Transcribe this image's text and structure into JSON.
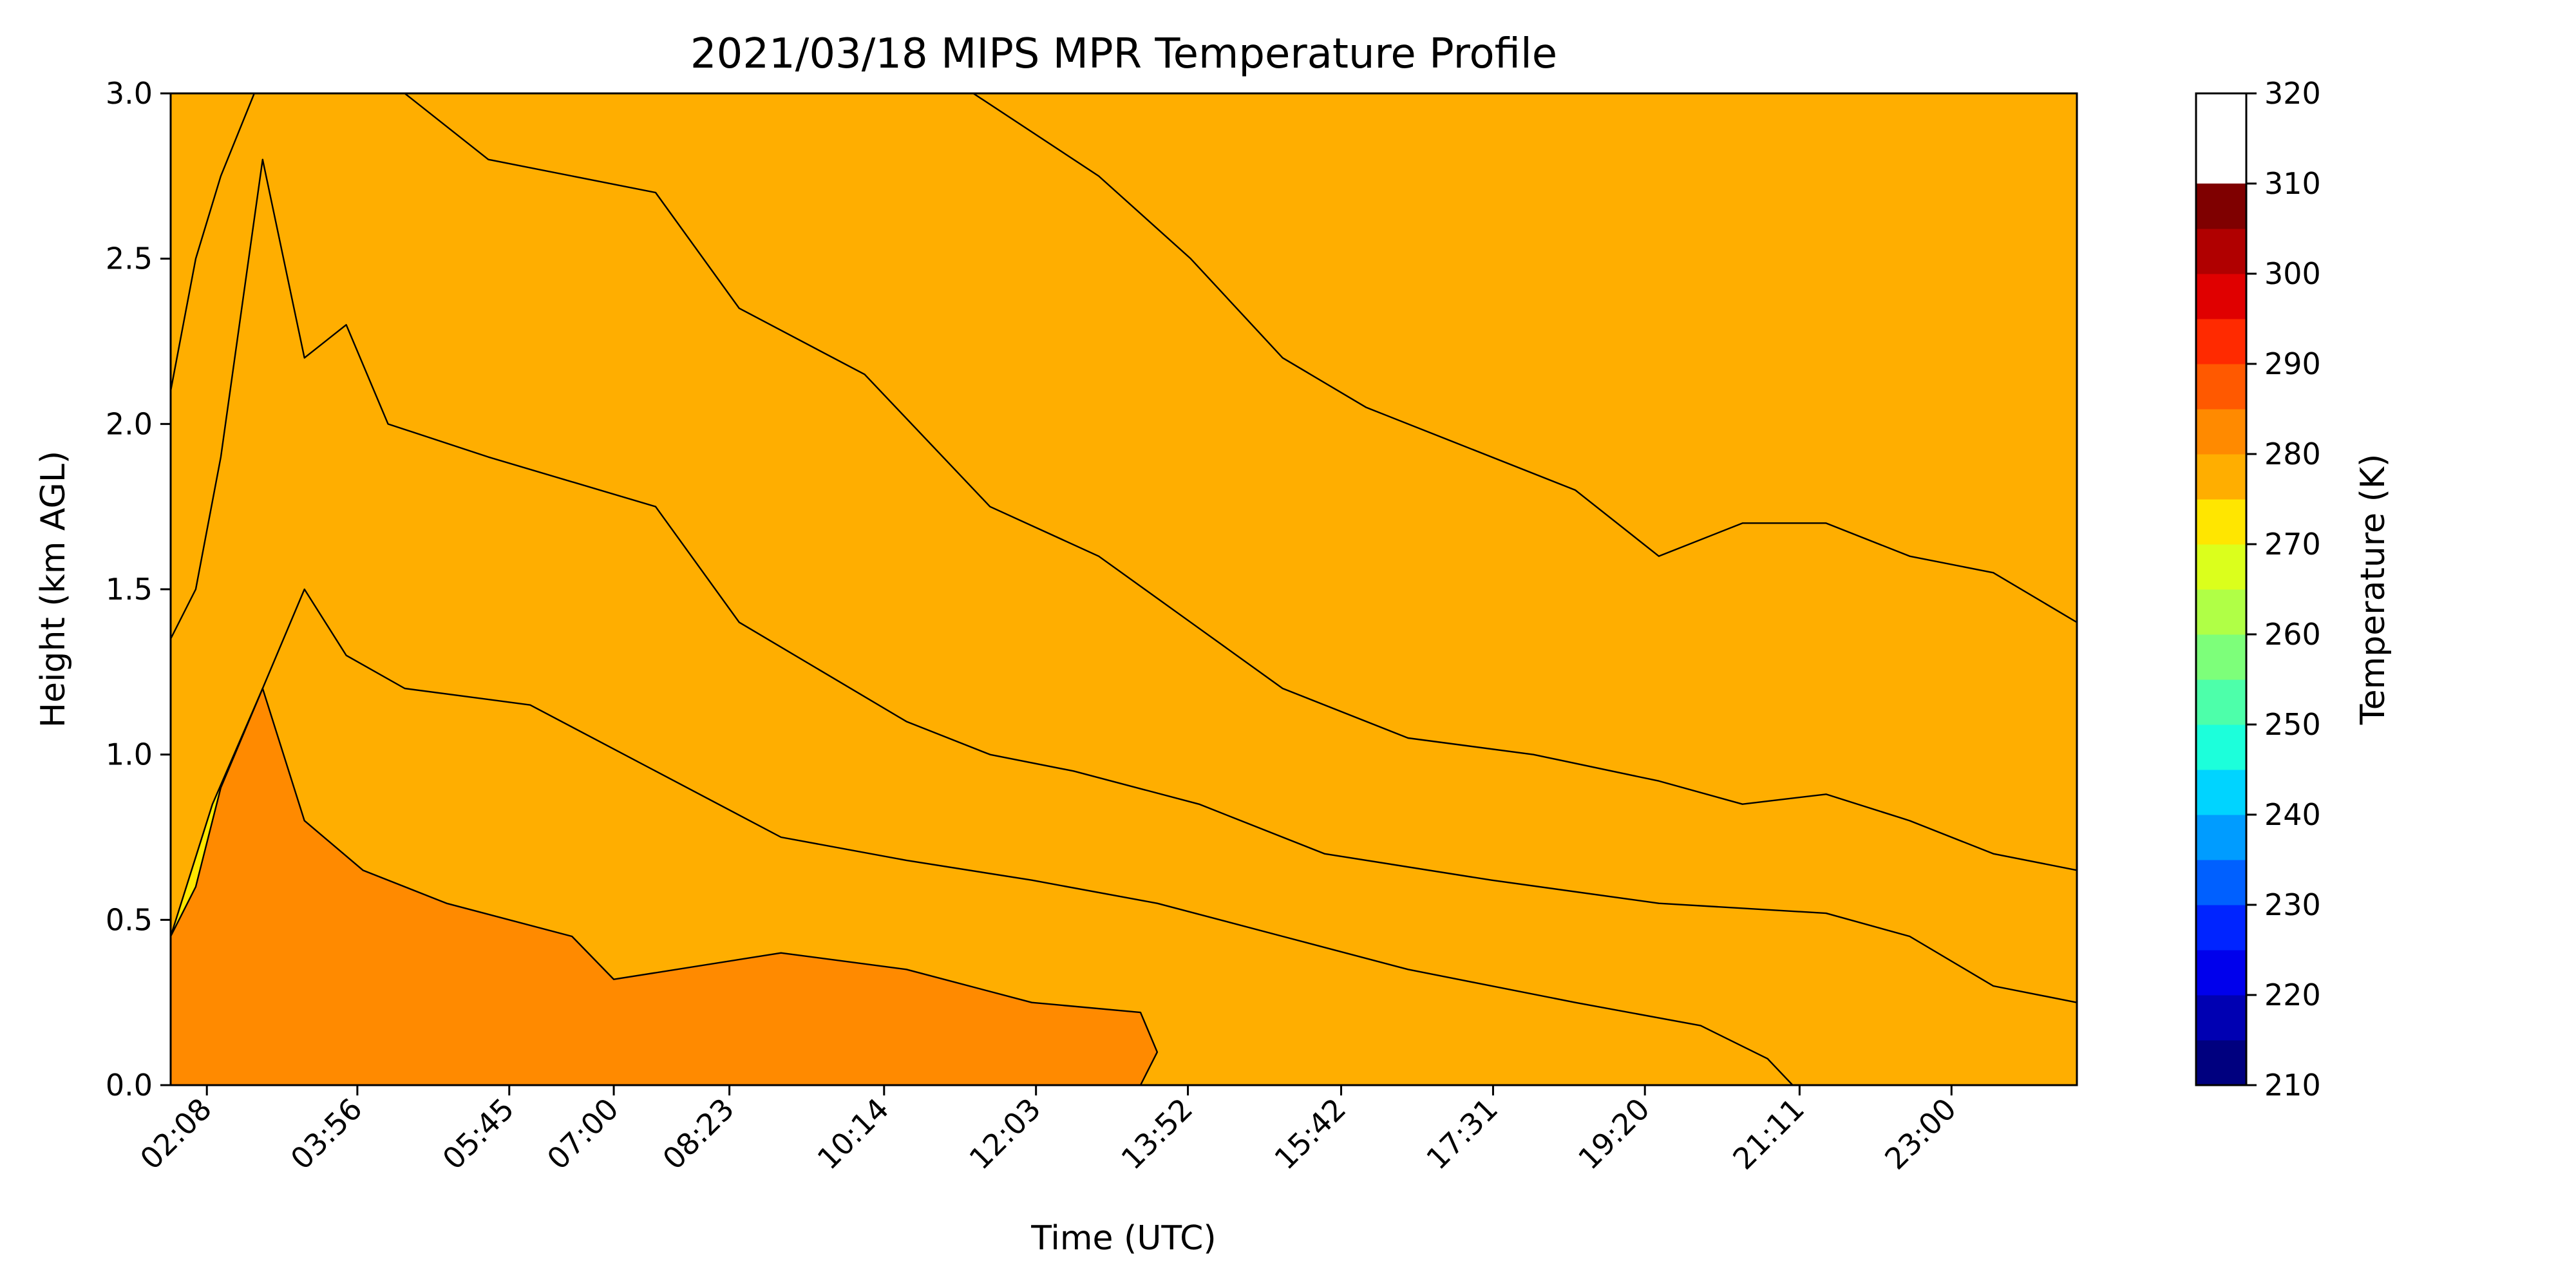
{
  "chart_data": {
    "type": "heatmap",
    "title": "2021/03/18 MIPS MPR Temperature Profile",
    "xlabel": "Time (UTC)",
    "ylabel": "Height (km AGL)",
    "xlim_hours": [
      1.7,
      24.5
    ],
    "ylim": [
      0.0,
      3.0
    ],
    "x_ticks": [
      {
        "label": "02:08",
        "hours": 2.133
      },
      {
        "label": "03:56",
        "hours": 3.933
      },
      {
        "label": "05:45",
        "hours": 5.75
      },
      {
        "label": "07:00",
        "hours": 7.0
      },
      {
        "label": "08:23",
        "hours": 8.383
      },
      {
        "label": "10:14",
        "hours": 10.233
      },
      {
        "label": "12:03",
        "hours": 12.05
      },
      {
        "label": "13:52",
        "hours": 13.867
      },
      {
        "label": "15:42",
        "hours": 15.7
      },
      {
        "label": "17:31",
        "hours": 17.517
      },
      {
        "label": "19:20",
        "hours": 19.333
      },
      {
        "label": "21:11",
        "hours": 21.183
      },
      {
        "label": "23:00",
        "hours": 23.0
      }
    ],
    "y_ticks": [
      "0.0",
      "0.5",
      "1.0",
      "1.5",
      "2.0",
      "2.5",
      "3.0"
    ],
    "colorbar": {
      "label": "Temperature (K)",
      "range": [
        210,
        320
      ],
      "step": 5,
      "tick_labels": [
        "210",
        "220",
        "230",
        "240",
        "250",
        "260",
        "270",
        "280",
        "290",
        "300",
        "310",
        "320"
      ],
      "colors": [
        "#00007f",
        "#0000b2",
        "#0000ec",
        "#0024ff",
        "#0060ff",
        "#009cff",
        "#00d4ff",
        "#1cffdb",
        "#4dffaa",
        "#7dff7a",
        "#b0ff46",
        "#dbff1c",
        "#ffe600",
        "#ffae00",
        "#ff8a00",
        "#ff5900",
        "#ff2a00",
        "#e00000",
        "#b00000",
        "#7f0000"
      ]
    },
    "contour_levels": [
      {
        "lower_K": 270,
        "upper_K": 275,
        "color": "#7dff7a",
        "boundary": [
          [
            11.3,
            3.0
          ],
          [
            12.8,
            2.75
          ],
          [
            13.9,
            2.5
          ],
          [
            15.0,
            2.2
          ],
          [
            16.0,
            2.05
          ],
          [
            17.0,
            1.95
          ],
          [
            18.5,
            1.8
          ],
          [
            19.5,
            1.6
          ],
          [
            20.5,
            1.7
          ],
          [
            21.5,
            1.7
          ],
          [
            22.5,
            1.6
          ],
          [
            23.5,
            1.55
          ],
          [
            24.5,
            1.4
          ]
        ]
      },
      {
        "lower_K": 275,
        "upper_K": 280,
        "color": "#b0ff46",
        "boundary": [
          [
            1.7,
            2.1
          ],
          [
            2.0,
            2.5
          ],
          [
            2.3,
            2.75
          ],
          [
            2.7,
            3.0
          ],
          [
            4.5,
            3.0
          ],
          [
            5.5,
            2.8
          ],
          [
            7.5,
            2.7
          ],
          [
            8.5,
            2.35
          ],
          [
            10.0,
            2.15
          ],
          [
            11.5,
            1.75
          ],
          [
            12.8,
            1.6
          ],
          [
            13.9,
            1.4
          ],
          [
            15.0,
            1.2
          ],
          [
            16.5,
            1.05
          ],
          [
            18.0,
            1.0
          ],
          [
            19.5,
            0.92
          ],
          [
            20.5,
            0.85
          ],
          [
            21.5,
            0.88
          ],
          [
            22.5,
            0.8
          ],
          [
            23.5,
            0.7
          ],
          [
            24.5,
            0.65
          ]
        ]
      },
      {
        "lower_K": 280,
        "upper_K": 285,
        "color": "#dbff1c",
        "boundary": [
          [
            1.7,
            1.35
          ],
          [
            2.0,
            1.5
          ],
          [
            2.3,
            1.9
          ],
          [
            2.8,
            2.8
          ],
          [
            3.3,
            2.2
          ],
          [
            3.8,
            2.3
          ],
          [
            4.3,
            2.0
          ],
          [
            5.5,
            1.9
          ],
          [
            7.5,
            1.75
          ],
          [
            8.5,
            1.4
          ],
          [
            9.5,
            1.25
          ],
          [
            10.5,
            1.1
          ],
          [
            11.5,
            1.0
          ],
          [
            12.5,
            0.95
          ],
          [
            14.0,
            0.85
          ],
          [
            15.5,
            0.7
          ],
          [
            17.5,
            0.62
          ],
          [
            19.5,
            0.55
          ],
          [
            21.5,
            0.52
          ],
          [
            22.5,
            0.45
          ],
          [
            23.5,
            0.3
          ],
          [
            24.5,
            0.25
          ]
        ]
      },
      {
        "lower_K": 285,
        "upper_K": 290,
        "color": "#ffe600",
        "boundary": [
          [
            1.7,
            0.45
          ],
          [
            2.0,
            0.6
          ],
          [
            2.3,
            0.9
          ],
          [
            2.8,
            1.2
          ],
          [
            3.3,
            1.5
          ],
          [
            3.8,
            1.3
          ],
          [
            4.5,
            1.2
          ],
          [
            6.0,
            1.15
          ],
          [
            7.5,
            0.95
          ],
          [
            9.0,
            0.75
          ],
          [
            10.5,
            0.68
          ],
          [
            12.0,
            0.62
          ],
          [
            13.5,
            0.55
          ],
          [
            15.0,
            0.45
          ],
          [
            16.5,
            0.35
          ],
          [
            18.5,
            0.25
          ],
          [
            20.0,
            0.18
          ],
          [
            20.8,
            0.08
          ],
          [
            21.1,
            0.0
          ]
        ]
      },
      {
        "lower_K": 290,
        "upper_K": 295,
        "color": "#ffae00",
        "boundary": [
          [
            1.7,
            0.0
          ],
          [
            1.7,
            0.45
          ],
          [
            2.2,
            0.85
          ],
          [
            2.8,
            1.2
          ],
          [
            3.3,
            0.8
          ],
          [
            4.0,
            0.65
          ],
          [
            5.0,
            0.55
          ],
          [
            6.5,
            0.45
          ],
          [
            7.0,
            0.32
          ],
          [
            9.0,
            0.4
          ],
          [
            10.5,
            0.35
          ],
          [
            12.0,
            0.25
          ],
          [
            13.3,
            0.22
          ],
          [
            13.5,
            0.1
          ],
          [
            13.3,
            0.0
          ]
        ]
      }
    ]
  }
}
